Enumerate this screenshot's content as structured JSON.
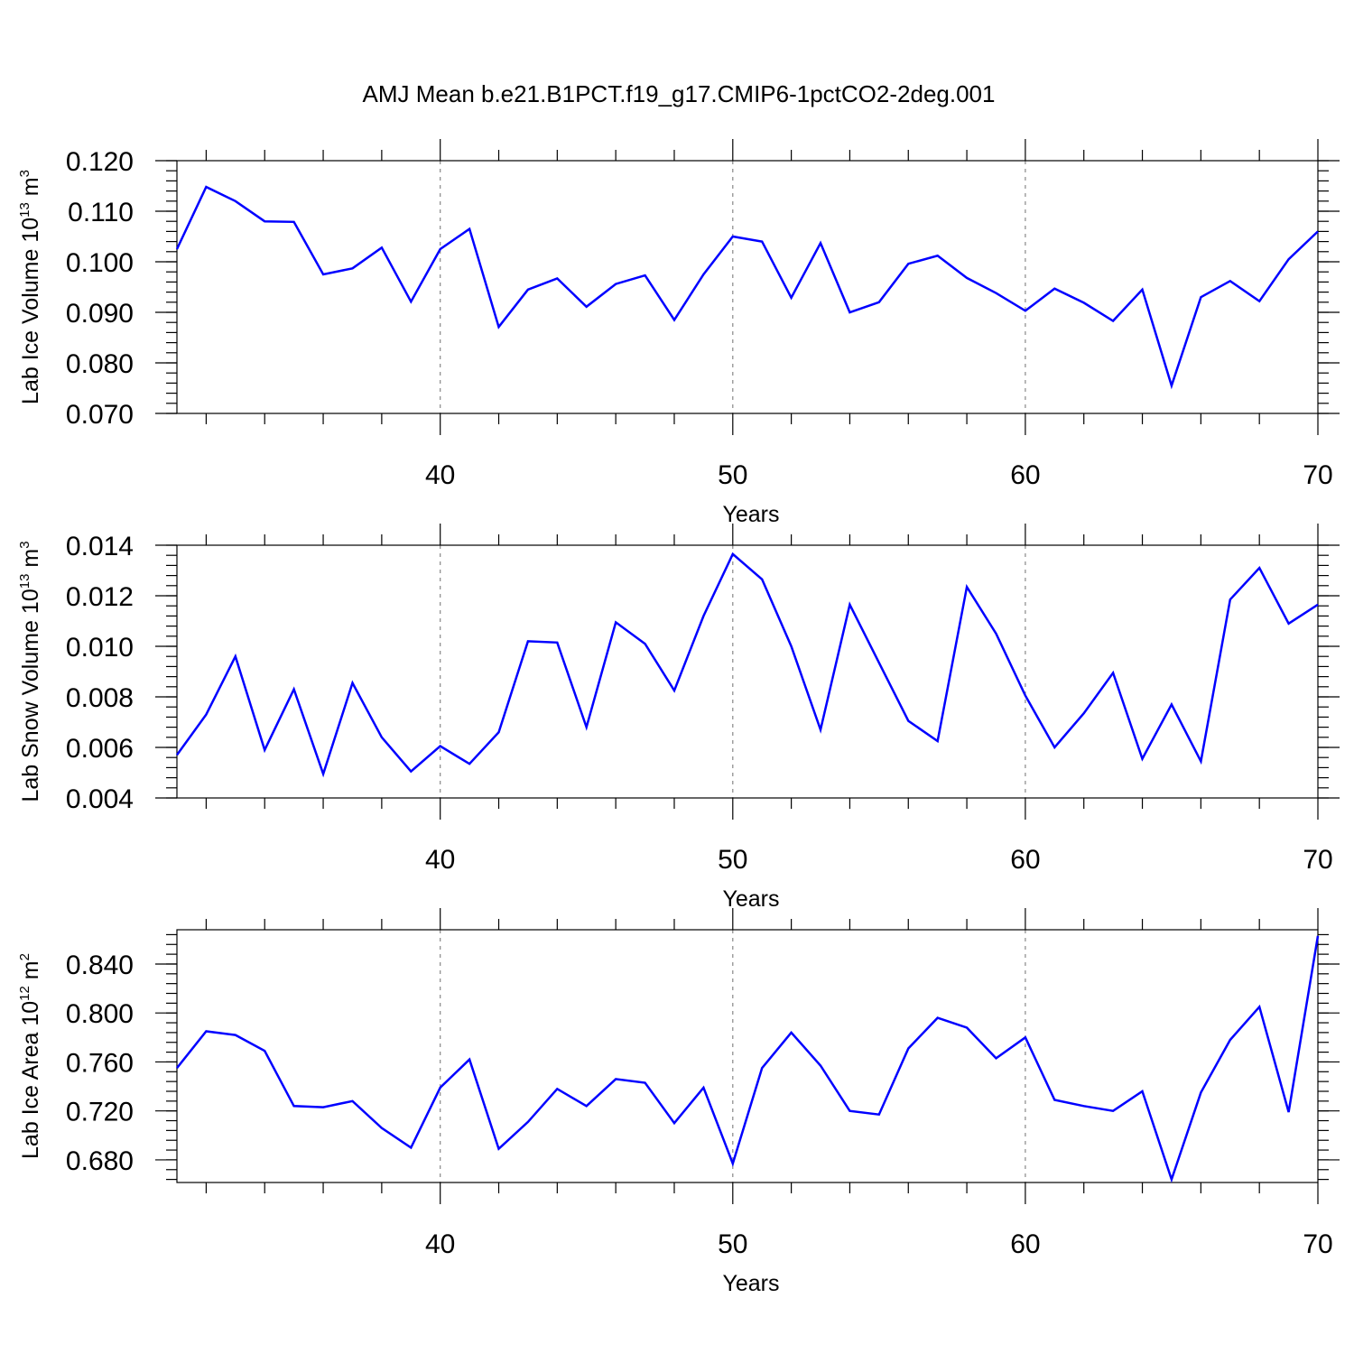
{
  "title": "AMJ Mean b.e21.B1PCT.f19_g17.CMIP6-1pctCO2-2deg.001",
  "chart_data": [
    {
      "type": "line",
      "ylabel": "Lab Ice Volume 10",
      "ylabel_sup": "13",
      "ylabel_unit": " m",
      "ylabel_unit_sup": "3",
      "xlabel": "Years",
      "xlim": [
        31,
        70
      ],
      "ylim": [
        0.07,
        0.12
      ],
      "yticks": [
        0.07,
        0.08,
        0.09,
        0.1,
        0.11,
        0.12
      ],
      "ytick_labels": [
        "0.070",
        "0.080",
        "0.090",
        "0.100",
        "0.110",
        "0.120"
      ],
      "yminor_step": 0.002,
      "xticks": [
        40,
        50,
        60,
        70
      ],
      "xtick_labels": [
        "40",
        "50",
        "60",
        "70"
      ],
      "grid_x": [
        40,
        50,
        60
      ],
      "color": "#0000ff",
      "series": [
        {
          "x": [
            31,
            32,
            33,
            34,
            35,
            36,
            37,
            38,
            39,
            40,
            41,
            42,
            43,
            44,
            45,
            46,
            47,
            48,
            49,
            50,
            51,
            52,
            53,
            54,
            55,
            56,
            57,
            58,
            59,
            60,
            61,
            62,
            63,
            64,
            65,
            66,
            67,
            68,
            69,
            70
          ],
          "values": [
            0.1025,
            0.1148,
            0.112,
            0.108,
            0.1079,
            0.0975,
            0.0987,
            0.1028,
            0.0921,
            0.1025,
            0.1065,
            0.0871,
            0.0945,
            0.0967,
            0.0911,
            0.0956,
            0.0973,
            0.0885,
            0.0975,
            0.105,
            0.104,
            0.0929,
            0.1037,
            0.09,
            0.092,
            0.0996,
            0.1012,
            0.0968,
            0.0938,
            0.0903,
            0.0947,
            0.0919,
            0.0883,
            0.0945,
            0.0755,
            0.093,
            0.0962,
            0.0922,
            0.1005,
            0.106
          ]
        }
      ]
    },
    {
      "type": "line",
      "ylabel": "Lab Snow Volume 10",
      "ylabel_sup": "13",
      "ylabel_unit": " m",
      "ylabel_unit_sup": "3",
      "xlabel": "Years",
      "xlim": [
        31,
        70
      ],
      "ylim": [
        0.004,
        0.014
      ],
      "yticks": [
        0.004,
        0.006,
        0.008,
        0.01,
        0.012,
        0.014
      ],
      "ytick_labels": [
        "0.004",
        "0.006",
        "0.008",
        "0.010",
        "0.012",
        "0.014"
      ],
      "yminor_step": 0.0004,
      "xticks": [
        40,
        50,
        60,
        70
      ],
      "xtick_labels": [
        "40",
        "50",
        "60",
        "70"
      ],
      "grid_x": [
        40,
        50,
        60
      ],
      "color": "#0000ff",
      "series": [
        {
          "x": [
            31,
            32,
            33,
            34,
            35,
            36,
            37,
            38,
            39,
            40,
            41,
            42,
            43,
            44,
            45,
            46,
            47,
            48,
            49,
            50,
            51,
            52,
            53,
            54,
            55,
            56,
            57,
            58,
            59,
            60,
            61,
            62,
            63,
            64,
            65,
            66,
            67,
            68,
            69,
            70
          ],
          "values": [
            0.0057,
            0.0073,
            0.0096,
            0.0059,
            0.0083,
            0.00495,
            0.00855,
            0.0064,
            0.00505,
            0.00605,
            0.00535,
            0.0066,
            0.0102,
            0.01015,
            0.0068,
            0.01095,
            0.0101,
            0.00825,
            0.0112,
            0.01365,
            0.01265,
            0.01,
            0.0067,
            0.01165,
            0.00935,
            0.00705,
            0.00625,
            0.01235,
            0.0105,
            0.00805,
            0.006,
            0.00735,
            0.00895,
            0.00555,
            0.0077,
            0.00545,
            0.01185,
            0.0131,
            0.0109,
            0.01165
          ]
        }
      ]
    },
    {
      "type": "line",
      "ylabel": "Lab Ice Area 10",
      "ylabel_sup": "12",
      "ylabel_unit": " m",
      "ylabel_unit_sup": "2",
      "xlabel": "Years",
      "xlim": [
        31,
        70
      ],
      "ylim": [
        0.6615,
        0.868
      ],
      "yticks": [
        0.68,
        0.72,
        0.76,
        0.8,
        0.84
      ],
      "ytick_labels": [
        "0.680",
        "0.720",
        "0.760",
        "0.800",
        "0.840"
      ],
      "yminor_step": 0.008,
      "xticks": [
        40,
        50,
        60,
        70
      ],
      "xtick_labels": [
        "40",
        "50",
        "60",
        "70"
      ],
      "grid_x": [
        40,
        50,
        60
      ],
      "color": "#0000ff",
      "series": [
        {
          "x": [
            31,
            32,
            33,
            34,
            35,
            36,
            37,
            38,
            39,
            40,
            41,
            42,
            43,
            44,
            45,
            46,
            47,
            48,
            49,
            50,
            51,
            52,
            53,
            54,
            55,
            56,
            57,
            58,
            59,
            60,
            61,
            62,
            63,
            64,
            65,
            66,
            67,
            68,
            69,
            70
          ],
          "values": [
            0.755,
            0.785,
            0.782,
            0.769,
            0.724,
            0.723,
            0.728,
            0.706,
            0.69,
            0.739,
            0.762,
            0.689,
            0.711,
            0.738,
            0.724,
            0.746,
            0.743,
            0.71,
            0.739,
            0.677,
            0.755,
            0.784,
            0.757,
            0.72,
            0.717,
            0.771,
            0.796,
            0.788,
            0.763,
            0.78,
            0.729,
            0.724,
            0.72,
            0.736,
            0.664,
            0.735,
            0.778,
            0.805,
            0.719,
            0.863
          ]
        }
      ]
    }
  ]
}
